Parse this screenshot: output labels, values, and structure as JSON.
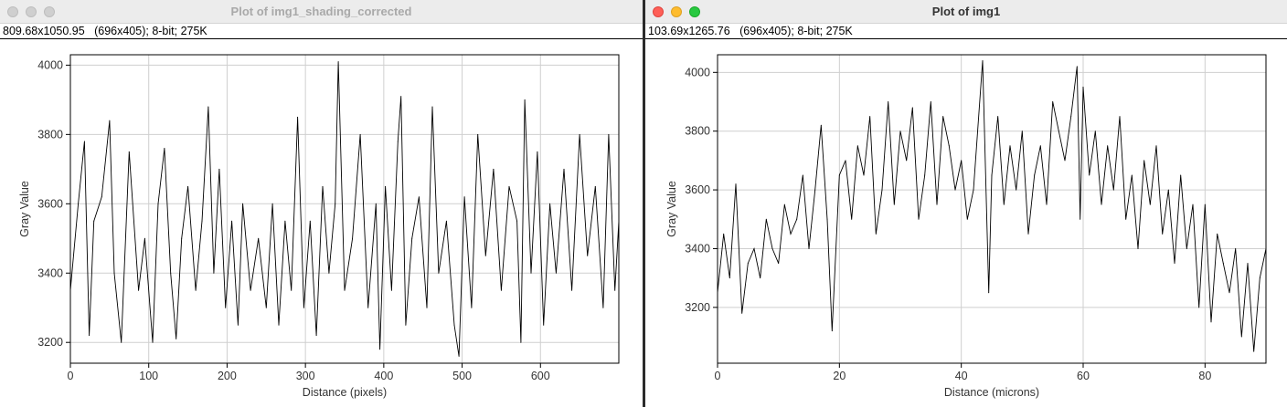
{
  "windows": [
    {
      "title": "Plot of img1_shading_corrected",
      "info": "809.68x1050.95   (696x405); 8-bit; 275K",
      "active": false
    },
    {
      "title": "Plot of img1",
      "info": "103.69x1265.76   (696x405); 8-bit; 275K",
      "active": true
    }
  ],
  "chart_data": [
    {
      "type": "line",
      "title": "",
      "xlabel": "Distance (pixels)",
      "ylabel": "Gray Value",
      "xlim": [
        0,
        700
      ],
      "ylim": [
        3140,
        4030
      ],
      "xticks": [
        0,
        100,
        200,
        300,
        400,
        500,
        600
      ],
      "yticks": [
        3200,
        3400,
        3600,
        3800,
        4000
      ],
      "grid": true,
      "line_color": "#000000",
      "series": [
        {
          "x": [
            0,
            10,
            18,
            24,
            30,
            40,
            50,
            56,
            65,
            75,
            87,
            95,
            105,
            112,
            120,
            128,
            135,
            142,
            150,
            160,
            168,
            176,
            183,
            190,
            198,
            206,
            214,
            220,
            230,
            240,
            250,
            258,
            266,
            274,
            282,
            290,
            298,
            306,
            314,
            322,
            330,
            338,
            342,
            350,
            360,
            370,
            380,
            390,
            395,
            402,
            410,
            418,
            422,
            428,
            436,
            445,
            455,
            462,
            470,
            480,
            490,
            496,
            503,
            512,
            520,
            530,
            540,
            550,
            560,
            570,
            575,
            580,
            588,
            596,
            604,
            612,
            620,
            630,
            640,
            650,
            660,
            670,
            680,
            687,
            695,
            700
          ],
          "y": [
            3350,
            3600,
            3780,
            3220,
            3550,
            3620,
            3840,
            3400,
            3200,
            3750,
            3350,
            3500,
            3200,
            3600,
            3760,
            3400,
            3210,
            3500,
            3650,
            3350,
            3550,
            3880,
            3400,
            3700,
            3300,
            3550,
            3250,
            3600,
            3350,
            3500,
            3300,
            3600,
            3250,
            3550,
            3350,
            3850,
            3300,
            3550,
            3220,
            3650,
            3400,
            3600,
            4010,
            3350,
            3500,
            3800,
            3300,
            3600,
            3180,
            3650,
            3350,
            3780,
            3910,
            3250,
            3500,
            3620,
            3300,
            3880,
            3400,
            3550,
            3250,
            3160,
            3620,
            3300,
            3800,
            3450,
            3700,
            3350,
            3650,
            3550,
            3200,
            3900,
            3400,
            3750,
            3250,
            3600,
            3400,
            3700,
            3350,
            3800,
            3450,
            3650,
            3300,
            3800,
            3350,
            3550
          ]
        }
      ]
    },
    {
      "type": "line",
      "title": "",
      "xlabel": "Distance (microns)",
      "ylabel": "Gray Value",
      "xlim": [
        0,
        90
      ],
      "ylim": [
        3010,
        4060
      ],
      "xticks": [
        0,
        20,
        40,
        60,
        80
      ],
      "yticks": [
        3200,
        3400,
        3600,
        3800,
        4000
      ],
      "grid": true,
      "line_color": "#000000",
      "series": [
        {
          "x": [
            0,
            1,
            2,
            3,
            4,
            5,
            6,
            7,
            8,
            9,
            10,
            11,
            12,
            13,
            14,
            15,
            16,
            17,
            18,
            18.8,
            20,
            21,
            22,
            23,
            24,
            25,
            26,
            27,
            28,
            29,
            30,
            31,
            32,
            33,
            34,
            35,
            36,
            37,
            38,
            39,
            40,
            41,
            42,
            43.5,
            44.5,
            45,
            46,
            47,
            48,
            49,
            50,
            51,
            52,
            53,
            54,
            55,
            56,
            57,
            58,
            59,
            59.5,
            60,
            61,
            62,
            63,
            64,
            65,
            66,
            67,
            68,
            69,
            70,
            71,
            72,
            73,
            74,
            75,
            76,
            77,
            78,
            79,
            80,
            81,
            82,
            83,
            84,
            85,
            86,
            87,
            88,
            89,
            90
          ],
          "y": [
            3250,
            3450,
            3300,
            3620,
            3180,
            3350,
            3400,
            3300,
            3500,
            3400,
            3350,
            3550,
            3450,
            3500,
            3650,
            3400,
            3600,
            3820,
            3500,
            3120,
            3650,
            3700,
            3500,
            3750,
            3650,
            3850,
            3450,
            3600,
            3900,
            3550,
            3800,
            3700,
            3880,
            3500,
            3650,
            3900,
            3550,
            3850,
            3750,
            3600,
            3700,
            3500,
            3600,
            4040,
            3250,
            3650,
            3850,
            3550,
            3750,
            3600,
            3800,
            3450,
            3650,
            3750,
            3550,
            3900,
            3800,
            3700,
            3850,
            4020,
            3500,
            3950,
            3650,
            3800,
            3550,
            3750,
            3600,
            3850,
            3500,
            3650,
            3400,
            3700,
            3550,
            3750,
            3450,
            3600,
            3350,
            3650,
            3400,
            3550,
            3200,
            3550,
            3150,
            3450,
            3350,
            3250,
            3400,
            3100,
            3350,
            3050,
            3300,
            3400
          ]
        }
      ]
    }
  ]
}
